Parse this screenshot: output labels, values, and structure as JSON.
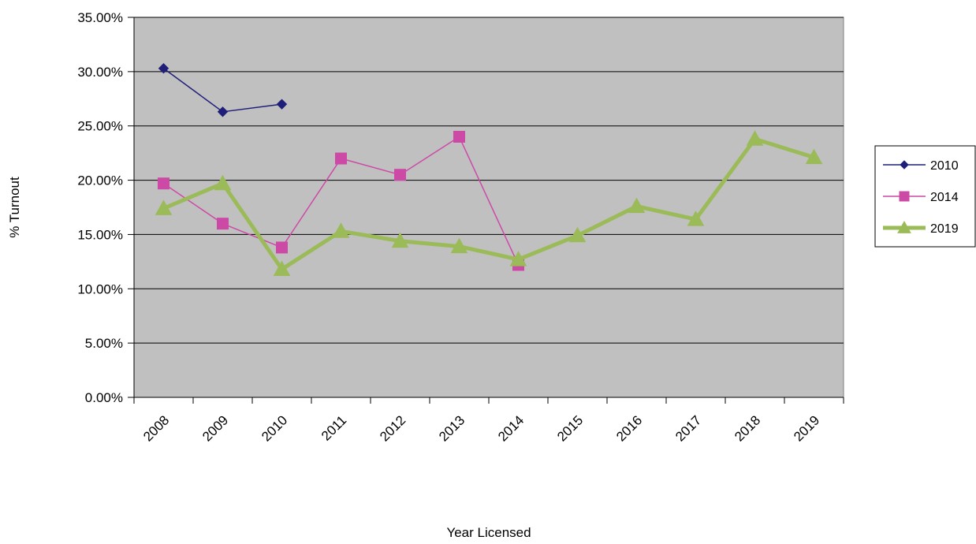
{
  "chart_data": {
    "type": "line",
    "categories": [
      "2008",
      "2009",
      "2010",
      "2011",
      "2012",
      "2013",
      "2014",
      "2015",
      "2016",
      "2017",
      "2018",
      "2019"
    ],
    "xlabel": "Year Licensed",
    "ylabel": "% Turnout",
    "ylim": [
      0,
      35
    ],
    "y_tick_labels": [
      "0.00%",
      "5.00%",
      "10.00%",
      "15.00%",
      "20.00%",
      "25.00%",
      "30.00%",
      "35.00%"
    ],
    "grid": true,
    "legend_position": "right",
    "plot_background": "#c0c0c0",
    "series": [
      {
        "name": "2010",
        "color": "#1f1f7a",
        "marker": "diamond",
        "line_width": 1.5,
        "values": [
          30.3,
          26.3,
          27.0,
          null,
          null,
          null,
          null,
          null,
          null,
          null,
          null,
          null
        ]
      },
      {
        "name": "2014",
        "color": "#cc4aa6",
        "marker": "square",
        "line_width": 1.5,
        "values": [
          19.7,
          16.0,
          13.8,
          22.0,
          20.5,
          24.0,
          12.2,
          null,
          null,
          null,
          null,
          null
        ]
      },
      {
        "name": "2019",
        "color": "#9bbb59",
        "marker": "triangle",
        "line_width": 5,
        "values": [
          17.4,
          19.7,
          11.8,
          15.3,
          14.4,
          13.9,
          12.7,
          14.9,
          17.6,
          16.4,
          23.8,
          22.1
        ]
      }
    ]
  }
}
